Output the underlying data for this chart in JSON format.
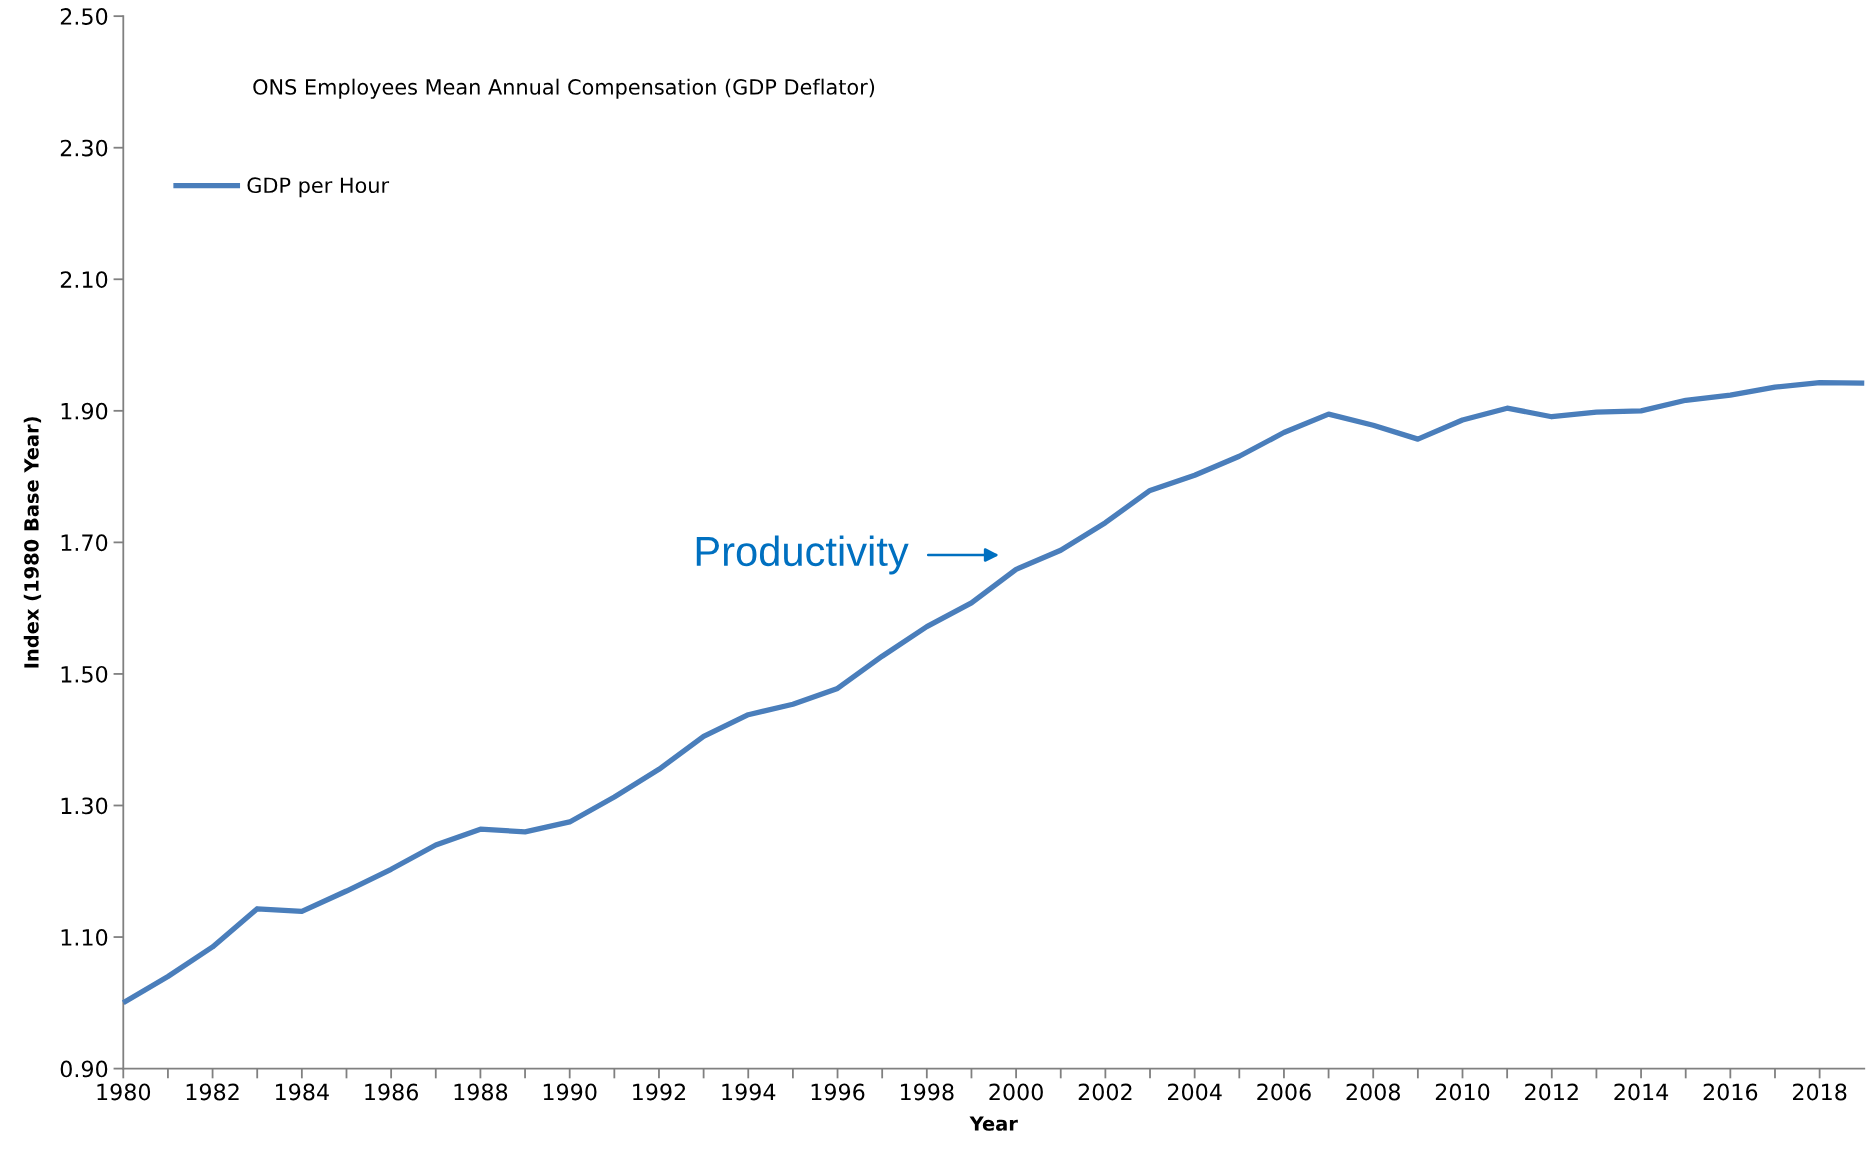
{
  "chart_data": {
    "type": "line",
    "xlabel": "Year",
    "ylabel": "Index (1980 Base Year)",
    "x": [
      1980,
      1981,
      1982,
      1983,
      1984,
      1985,
      1986,
      1987,
      1988,
      1989,
      1990,
      1991,
      1992,
      1993,
      1994,
      1995,
      1996,
      1997,
      1998,
      1999,
      2000,
      2001,
      2002,
      2003,
      2004,
      2005,
      2006,
      2007,
      2008,
      2009,
      2010,
      2011,
      2012,
      2013,
      2014,
      2015,
      2016,
      2017,
      2018,
      2019
    ],
    "series": [
      {
        "name": "GDP per Hour",
        "color": "#4a7ebb",
        "values": [
          1.0,
          1.04,
          1.085,
          1.143,
          1.139,
          1.17,
          1.203,
          1.24,
          1.264,
          1.26,
          1.275,
          1.313,
          1.355,
          1.405,
          1.438,
          1.454,
          1.478,
          1.527,
          1.572,
          1.608,
          1.659,
          1.688,
          1.73,
          1.779,
          1.802,
          1.831,
          1.867,
          1.895,
          1.878,
          1.857,
          1.886,
          1.904,
          1.891,
          1.898,
          1.9,
          1.916,
          1.924,
          1.936,
          1.943,
          1.942
        ]
      }
    ],
    "xlim": [
      1980,
      2019
    ],
    "xticks": [
      1980,
      {
        "value": 1981,
        "label": null
      },
      1982,
      {
        "value": 1983,
        "label": null
      },
      1984,
      {
        "value": 1985,
        "label": null
      },
      1986,
      {
        "value": 1987,
        "label": null
      },
      1988,
      {
        "value": 1989,
        "label": null
      },
      1990,
      {
        "value": 1991,
        "label": null
      },
      1992,
      {
        "value": 1993,
        "label": null
      },
      1994,
      {
        "value": 1995,
        "label": null
      },
      1996,
      {
        "value": 1997,
        "label": null
      },
      1998,
      {
        "value": 1999,
        "label": null
      },
      2000,
      {
        "value": 2001,
        "label": null
      },
      2002,
      {
        "value": 2003,
        "label": null
      },
      2004,
      {
        "value": 2005,
        "label": null
      },
      2006,
      {
        "value": 2007,
        "label": null
      },
      2008,
      {
        "value": 2009,
        "label": null
      },
      2010,
      {
        "value": 2011,
        "label": null
      },
      2012,
      {
        "value": 2013,
        "label": null
      },
      2014,
      {
        "value": 2015,
        "label": null
      },
      2016,
      {
        "value": 2017,
        "label": null
      },
      2018
    ],
    "ylim": [
      0.9,
      2.5
    ],
    "yticks": [
      {
        "value": 0.9,
        "label": "0.90"
      },
      {
        "value": 1.1,
        "label": "1.10"
      },
      {
        "value": 1.3,
        "label": "1.30"
      },
      {
        "value": 1.5,
        "label": "1.50"
      },
      {
        "value": 1.7,
        "label": "1.70"
      },
      {
        "value": 1.9,
        "label": "1.90"
      },
      {
        "value": 2.1,
        "label": "2.10"
      },
      {
        "value": 2.3,
        "label": "2.30"
      },
      {
        "value": 2.5,
        "label": "2.50"
      }
    ],
    "annotations": [
      "ONS Employees Mean Annual Compensation (GDP Deflator)",
      "Productivity"
    ],
    "grid": false,
    "legend": "top left",
    "marker": "none",
    "line_style": "solid"
  }
}
